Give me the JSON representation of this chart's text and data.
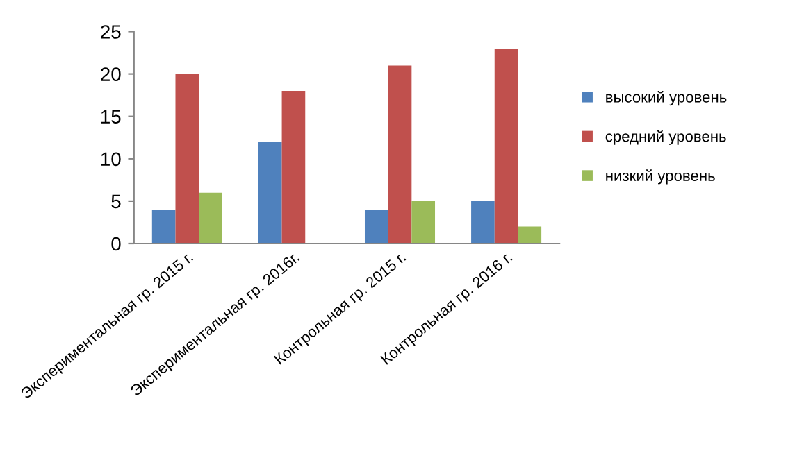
{
  "chart_data": {
    "type": "bar",
    "categories": [
      "Экспериментальная гр. 2015 г.",
      "Экспериментальная гр. 2016г.",
      "Контрольная гр. 2015 г.",
      "Контрольная гр. 2016 г."
    ],
    "series": [
      {
        "name": "высокий уровень",
        "color": "#4f81bd",
        "values": [
          4,
          12,
          4,
          5
        ]
      },
      {
        "name": "средний уровень",
        "color": "#c0504d",
        "values": [
          20,
          18,
          21,
          23
        ]
      },
      {
        "name": "низкий уровень",
        "color": "#9bbb59",
        "values": [
          6,
          0,
          5,
          2
        ]
      }
    ],
    "ylim": [
      0,
      25
    ],
    "yticks": [
      0,
      5,
      10,
      15,
      20,
      25
    ],
    "grid": false,
    "legend": "right"
  }
}
